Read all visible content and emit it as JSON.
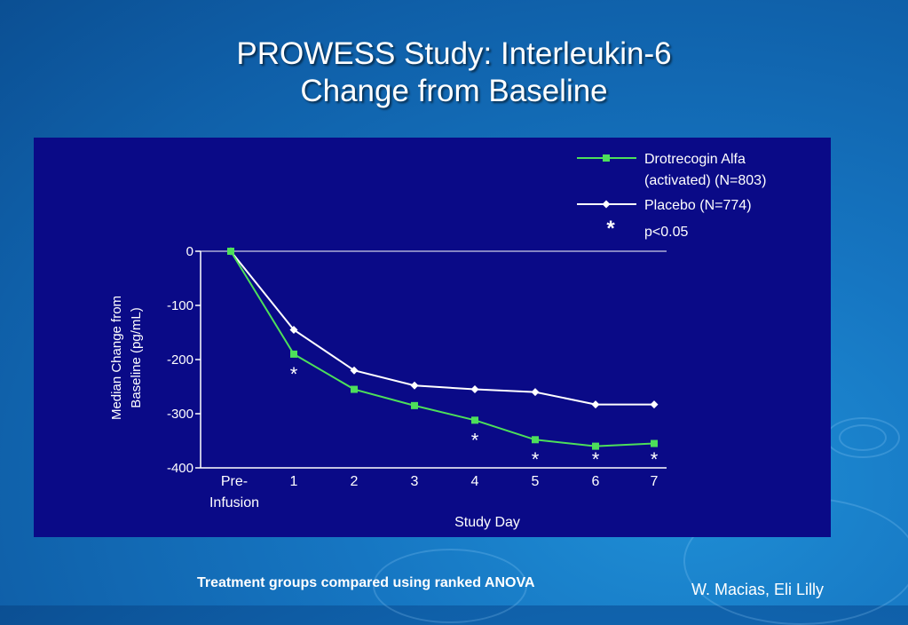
{
  "slide": {
    "title_line1": "PROWESS Study: Interleukin-6",
    "title_line2": "Change from Baseline",
    "footnote": "Treatment groups compared using ranked ANOVA",
    "credit": "W. Macias, Eli Lilly"
  },
  "chart_data": {
    "type": "line",
    "x": [
      "Pre-Infusion",
      "1",
      "2",
      "3",
      "4",
      "5",
      "6",
      "7"
    ],
    "x_tick_labels": [
      "Pre-",
      "1",
      "2",
      "3",
      "4",
      "5",
      "6",
      "7"
    ],
    "x_tick_label_second_line": "Infusion",
    "xlabel": "Study Day",
    "ylabel_line1": "Median Change from",
    "ylabel_line2": "Baseline (pg/mL)",
    "ylim": [
      -400,
      0
    ],
    "yticks": [
      0,
      -100,
      -200,
      -300,
      -400
    ],
    "grid": false,
    "legend_position": "top-right",
    "legend_note_symbol": "*",
    "legend_note_text": "p<0.05",
    "series": [
      {
        "name": "Drotrecogin Alfa (activated) (N=803)",
        "legend_line1": "Drotrecogin Alfa",
        "legend_line2": "(activated) (N=803)",
        "color": "#4ddf5a",
        "marker": "square",
        "values": [
          0,
          -190,
          -255,
          -285,
          -312,
          -348,
          -360,
          -355
        ]
      },
      {
        "name": "Placebo (N=774)",
        "legend_line1": "Placebo (N=774)",
        "color": "#ffffff",
        "marker": "diamond",
        "values": [
          0,
          -145,
          -220,
          -248,
          -255,
          -260,
          -283,
          -283
        ]
      }
    ],
    "significance": [
      {
        "x_index": 1,
        "symbol": "*"
      },
      {
        "x_index": 4,
        "symbol": "*"
      },
      {
        "x_index": 5,
        "symbol": "*"
      },
      {
        "x_index": 6,
        "symbol": "*"
      },
      {
        "x_index": 7,
        "symbol": "*"
      }
    ]
  },
  "colors": {
    "background": "#1676c2",
    "plot_background": "#0a0a87",
    "axis": "#ffffff",
    "text": "#ffffff"
  }
}
